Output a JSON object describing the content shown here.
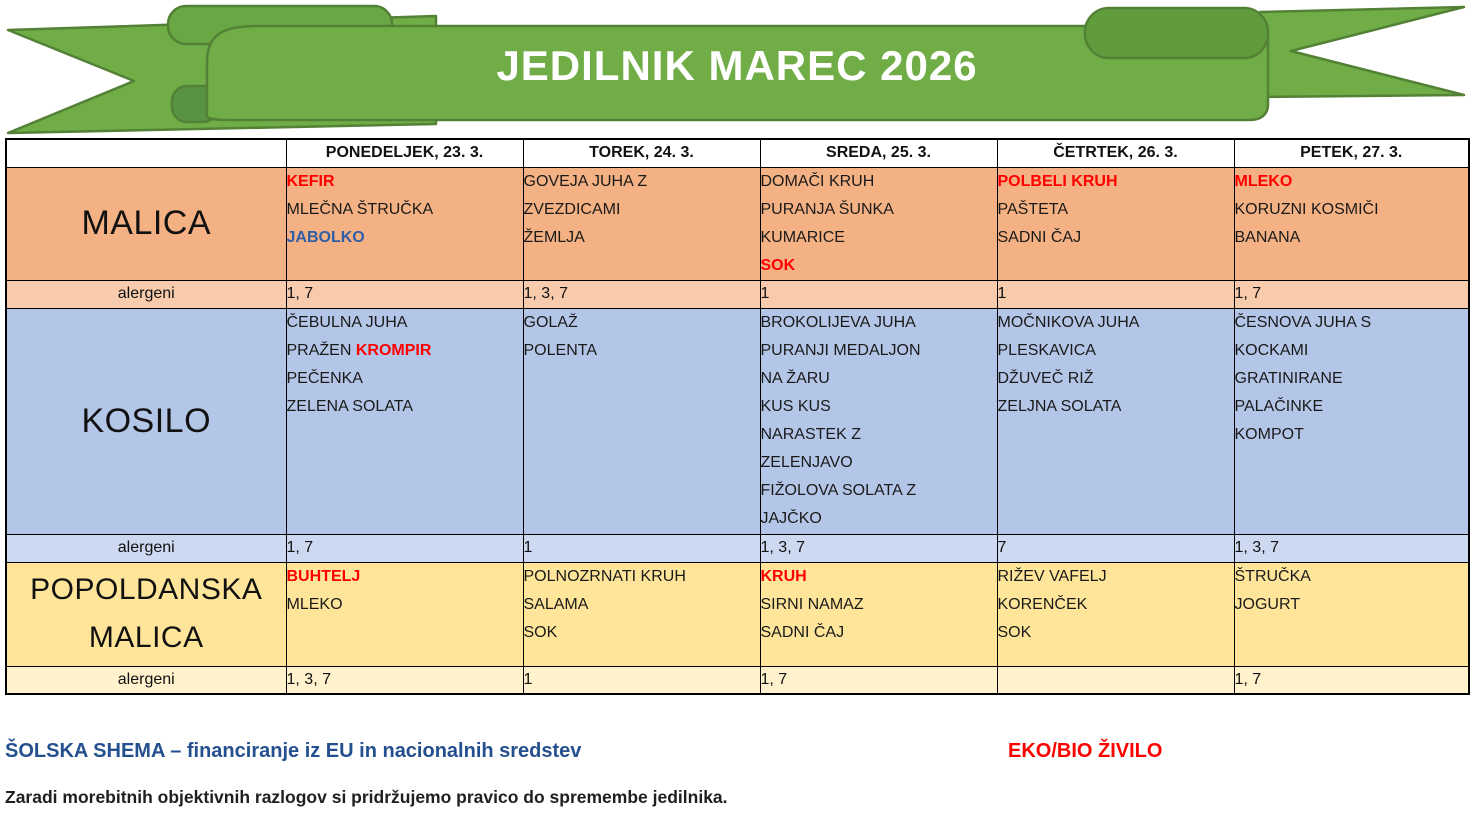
{
  "banner": {
    "title": "JEDILNIK MAREC 2026",
    "ribbon_green": "#70AD47",
    "ribbon_dark_edge": "#538135",
    "ribbon_shade": "#619C3C",
    "ribbon_tab": "#68A744",
    "title_color": "#FFFFFF"
  },
  "text_colors": {
    "black": "#1A1A1A",
    "red": "#FF0000",
    "blue": "#2E5EA6"
  },
  "table": {
    "allergen_label": "alergeni",
    "days": [
      "PONEDELJEK, 23. 3.",
      "TOREK, 24. 3.",
      "SREDA, 25. 3.",
      "ČETRTEK, 26. 3.",
      "PETEK, 27. 3."
    ],
    "sections": [
      {
        "id": "malica",
        "label_lines": [
          "MALICA"
        ],
        "bg": "#F4B183",
        "allergen_bg": "#F8CBAD",
        "cells": [
          [
            [
              {
                "t": "KEFIR",
                "c": "red"
              }
            ],
            [
              {
                "t": "MLEČNA ŠTRUČKA",
                "c": "black"
              }
            ],
            [
              {
                "t": "JABOLKO",
                "c": "blue"
              }
            ]
          ],
          [
            [
              {
                "t": "GOVEJA JUHA Z",
                "c": "black"
              }
            ],
            [
              {
                "t": "ZVEZDICAMI",
                "c": "black"
              }
            ],
            [
              {
                "t": "ŽEMLJA",
                "c": "black"
              }
            ]
          ],
          [
            [
              {
                "t": "DOMAČI KRUH",
                "c": "black"
              }
            ],
            [
              {
                "t": "PURANJA ŠUNKA",
                "c": "black"
              }
            ],
            [
              {
                "t": "KUMARICE",
                "c": "black"
              }
            ],
            [
              {
                "t": "SOK",
                "c": "red"
              }
            ]
          ],
          [
            [
              {
                "t": "POLBELI KRUH",
                "c": "red"
              }
            ],
            [
              {
                "t": "PAŠTETA",
                "c": "black"
              }
            ],
            [
              {
                "t": "SADNI ČAJ",
                "c": "black"
              }
            ]
          ],
          [
            [
              {
                "t": "MLEKO",
                "c": "red"
              }
            ],
            [
              {
                "t": "KORUZNI KOSMIČI",
                "c": "black"
              }
            ],
            [
              {
                "t": "BANANA",
                "c": "black"
              }
            ]
          ]
        ],
        "allergens": [
          "1, 7",
          "1, 3, 7",
          "1",
          "1",
          "1, 7"
        ]
      },
      {
        "id": "kosilo",
        "label_lines": [
          "KOSILO"
        ],
        "bg": "#B4C6E7",
        "allergen_bg": "#CDD9F0",
        "cells": [
          [
            [
              {
                "t": "ČEBULNA JUHA",
                "c": "black"
              }
            ],
            [
              {
                "t": "PRAŽEN",
                "c": "black"
              },
              {
                "t": "KROMPIR",
                "c": "red"
              }
            ],
            [
              {
                "t": "PEČENKA",
                "c": "black"
              }
            ],
            [
              {
                "t": "ZELENA SOLATA",
                "c": "black"
              }
            ]
          ],
          [
            [
              {
                "t": "GOLAŽ",
                "c": "black"
              }
            ],
            [
              {
                "t": "POLENTA",
                "c": "black"
              }
            ]
          ],
          [
            [
              {
                "t": "BROKOLIJEVA JUHA",
                "c": "black"
              }
            ],
            [
              {
                "t": "PURANJI MEDALJON",
                "c": "black"
              }
            ],
            [
              {
                "t": "NA ŽARU",
                "c": "black"
              }
            ],
            [
              {
                "t": "KUS KUS",
                "c": "black"
              }
            ],
            [
              {
                "t": "NARASTEK Z",
                "c": "black"
              }
            ],
            [
              {
                "t": "ZELENJAVO",
                "c": "black"
              }
            ],
            [
              {
                "t": "FIŽOLOVA SOLATA Z",
                "c": "black"
              }
            ],
            [
              {
                "t": "JAJČKO",
                "c": "black"
              }
            ]
          ],
          [
            [
              {
                "t": "MOČNIKOVA JUHA",
                "c": "black"
              }
            ],
            [
              {
                "t": "PLESKAVICA",
                "c": "black"
              }
            ],
            [
              {
                "t": "DŽUVEČ RIŽ",
                "c": "black"
              }
            ],
            [
              {
                "t": "ZELJNA SOLATA",
                "c": "black"
              }
            ]
          ],
          [
            [
              {
                "t": "ČESNOVA JUHA S",
                "c": "black"
              }
            ],
            [
              {
                "t": "KOCKAMI",
                "c": "black"
              }
            ],
            [
              {
                "t": "GRATINIRANE",
                "c": "black"
              }
            ],
            [
              {
                "t": "PALAČINKE",
                "c": "black"
              }
            ],
            [
              {
                "t": "KOMPOT",
                "c": "black"
              }
            ]
          ]
        ],
        "allergens": [
          "1, 7",
          "1",
          "1, 3, 7",
          "7",
          "1, 3, 7"
        ]
      },
      {
        "id": "popoldanska-malica",
        "label_lines": [
          "POPOLDANSKA",
          "MALICA"
        ],
        "bg": "#FFE599",
        "allergen_bg": "#FFF2CC",
        "cells": [
          [
            [
              {
                "t": "BUHTELJ",
                "c": "red"
              }
            ],
            [
              {
                "t": "MLEKO",
                "c": "black"
              }
            ]
          ],
          [
            [
              {
                "t": "POLNOZRNATI KRUH",
                "c": "black"
              }
            ],
            [
              {
                "t": "SALAMA",
                "c": "black"
              }
            ],
            [
              {
                "t": "SOK",
                "c": "black"
              }
            ]
          ],
          [
            [
              {
                "t": "KRUH",
                "c": "red"
              }
            ],
            [
              {
                "t": "SIRNI NAMAZ",
                "c": "black"
              }
            ],
            [
              {
                "t": "SADNI ČAJ",
                "c": "black"
              }
            ]
          ],
          [
            [
              {
                "t": "RIŽEV VAFELJ",
                "c": "black"
              }
            ],
            [
              {
                "t": "KORENČEK",
                "c": "black"
              }
            ],
            [
              {
                "t": "SOK",
                "c": "black"
              }
            ]
          ],
          [
            [
              {
                "t": "ŠTRUČKA",
                "c": "black"
              }
            ],
            [
              {
                "t": "JOGURT",
                "c": "black"
              }
            ]
          ]
        ],
        "allergens": [
          "1, 3, 7",
          "1",
          "1, 7",
          "",
          "1, 7"
        ]
      }
    ]
  },
  "footer": {
    "scheme": "ŠOLSKA SHEMA – financiranje iz EU in nacionalnih sredstev",
    "scheme_color": "#24508F",
    "eko": "EKO/BIO ŽIVILO",
    "eko_color": "#FF0000",
    "note": "Zaradi morebitnih objektivnih razlogov si pridržujemo pravico do spremembe jedilnika."
  }
}
